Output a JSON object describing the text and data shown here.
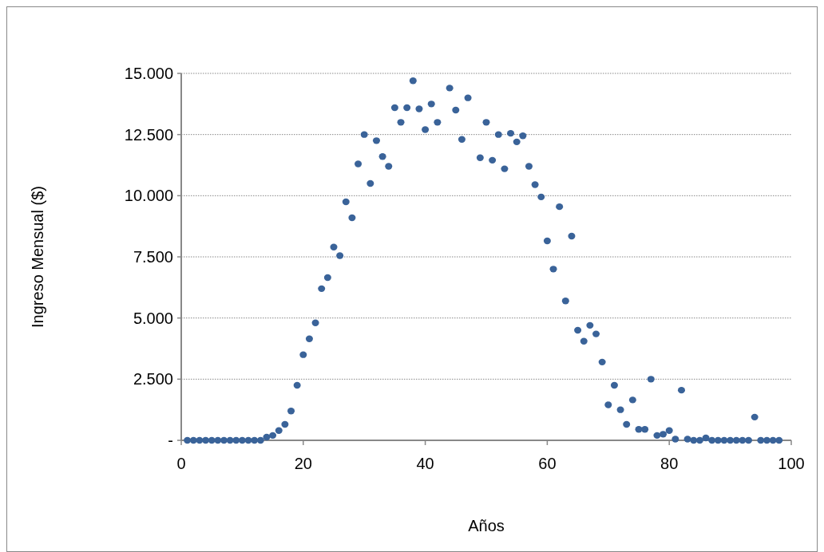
{
  "chart_data": {
    "type": "scatter",
    "xlabel": "Años",
    "ylabel": "Ingreso Mensual ($)",
    "xlim": [
      0,
      100
    ],
    "xticks": [
      0,
      20,
      40,
      60,
      80,
      100
    ],
    "ylim": [
      0,
      15000
    ],
    "yticks": [
      {
        "value": 0,
        "label": "-"
      },
      {
        "value": 2500,
        "label": "2.500"
      },
      {
        "value": 5000,
        "label": "5.000"
      },
      {
        "value": 7500,
        "label": "7.500"
      },
      {
        "value": 10000,
        "label": "10.000"
      },
      {
        "value": 12500,
        "label": "12.500"
      },
      {
        "value": 15000,
        "label": "15.000"
      }
    ],
    "grid": "y",
    "marker": "circle",
    "series": [
      {
        "color": "#3a6399",
        "x": [
          1,
          2,
          3,
          4,
          5,
          6,
          7,
          8,
          9,
          10,
          11,
          12,
          13,
          14,
          15,
          16,
          17,
          18,
          19,
          20,
          21,
          22,
          23,
          24,
          25,
          26,
          27,
          28,
          29,
          30,
          31,
          32,
          33,
          34,
          35,
          36,
          37,
          38,
          39,
          40,
          41,
          42,
          44,
          45,
          46,
          47,
          49,
          50,
          51,
          52,
          53,
          54,
          55,
          56,
          57,
          58,
          59,
          60,
          61,
          62,
          63,
          64,
          65,
          66,
          67,
          68,
          69,
          70,
          71,
          72,
          73,
          74,
          75,
          76,
          77,
          78,
          79,
          80,
          81,
          82,
          83,
          84,
          85,
          86,
          87,
          88,
          89,
          90,
          91,
          92,
          93,
          94,
          95,
          96,
          97,
          98
        ],
        "values": [
          0,
          0,
          0,
          0,
          0,
          0,
          0,
          0,
          0,
          0,
          0,
          0,
          0,
          130,
          200,
          400,
          650,
          1200,
          2250,
          3500,
          4150,
          4800,
          6200,
          6650,
          7900,
          7550,
          9750,
          9100,
          11300,
          12500,
          10500,
          12250,
          11600,
          11200,
          13600,
          13000,
          13600,
          14700,
          13550,
          12700,
          13750,
          13000,
          14400,
          13500,
          12300,
          14000,
          11550,
          13000,
          11450,
          12500,
          11100,
          12550,
          12200,
          12450,
          11200,
          10450,
          9950,
          8150,
          7000,
          9550,
          5700,
          8350,
          4500,
          4050,
          4700,
          4350,
          3200,
          1450,
          2250,
          1250,
          650,
          1650,
          450,
          450,
          2500,
          200,
          250,
          400,
          50,
          2050,
          50,
          0,
          0,
          100,
          0,
          0,
          0,
          0,
          0,
          0,
          0,
          950,
          0,
          0,
          0,
          0
        ]
      }
    ]
  }
}
